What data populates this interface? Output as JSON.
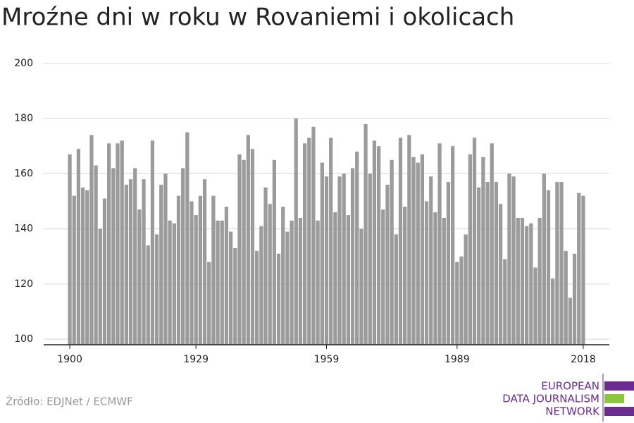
{
  "chart_data": {
    "type": "bar",
    "title": "Mroźne dni w roku w Rovaniemi i okolicach",
    "x": [
      1900,
      1901,
      1902,
      1903,
      1904,
      1905,
      1906,
      1907,
      1908,
      1909,
      1910,
      1911,
      1912,
      1913,
      1914,
      1915,
      1916,
      1917,
      1918,
      1919,
      1920,
      1921,
      1922,
      1923,
      1924,
      1925,
      1926,
      1927,
      1928,
      1929,
      1930,
      1931,
      1932,
      1933,
      1934,
      1935,
      1936,
      1937,
      1938,
      1939,
      1940,
      1941,
      1942,
      1943,
      1944,
      1945,
      1946,
      1947,
      1948,
      1949,
      1950,
      1951,
      1952,
      1953,
      1954,
      1955,
      1956,
      1957,
      1958,
      1959,
      1960,
      1961,
      1962,
      1963,
      1964,
      1965,
      1966,
      1967,
      1968,
      1969,
      1970,
      1971,
      1972,
      1973,
      1974,
      1975,
      1976,
      1977,
      1978,
      1979,
      1980,
      1981,
      1982,
      1983,
      1984,
      1985,
      1986,
      1987,
      1988,
      1989,
      1990,
      1991,
      1992,
      1993,
      1994,
      1995,
      1996,
      1997,
      1998,
      1999,
      2000,
      2001,
      2002,
      2003,
      2004,
      2005,
      2006,
      2007,
      2008,
      2009,
      2010,
      2011,
      2012,
      2013,
      2014,
      2015,
      2016,
      2017,
      2018
    ],
    "values": [
      167,
      152,
      169,
      155,
      154,
      174,
      163,
      140,
      151,
      171,
      162,
      171,
      172,
      156,
      158,
      162,
      147,
      158,
      134,
      172,
      138,
      156,
      160,
      143,
      142,
      152,
      162,
      175,
      150,
      145,
      152,
      158,
      128,
      152,
      143,
      143,
      148,
      139,
      133,
      167,
      165,
      174,
      169,
      132,
      141,
      155,
      149,
      165,
      131,
      148,
      139,
      143,
      180,
      144,
      171,
      173,
      177,
      143,
      164,
      159,
      173,
      146,
      159,
      160,
      145,
      162,
      168,
      140,
      178,
      160,
      172,
      170,
      147,
      156,
      165,
      138,
      173,
      148,
      174,
      166,
      164,
      167,
      150,
      159,
      146,
      171,
      144,
      157,
      170,
      128,
      130,
      138,
      167,
      173,
      155,
      166,
      157,
      171,
      157,
      149,
      129,
      160,
      159,
      144,
      144,
      141,
      142,
      126,
      144,
      160,
      154,
      122,
      157,
      157,
      132,
      115,
      131,
      153,
      152
    ],
    "color": "#9b9b9b",
    "xlim": [
      1894,
      2024
    ],
    "xticks": [
      1900,
      1929,
      1959,
      1989,
      2018
    ],
    "ylim": [
      98,
      202
    ],
    "yticks": [
      100,
      120,
      140,
      160,
      180,
      200
    ],
    "grid": true,
    "source": "Źródło: EDJNet / ECMWF",
    "logo": [
      "EUROPEAN",
      "DATA JOURNALISM",
      "NETWORK"
    ]
  }
}
